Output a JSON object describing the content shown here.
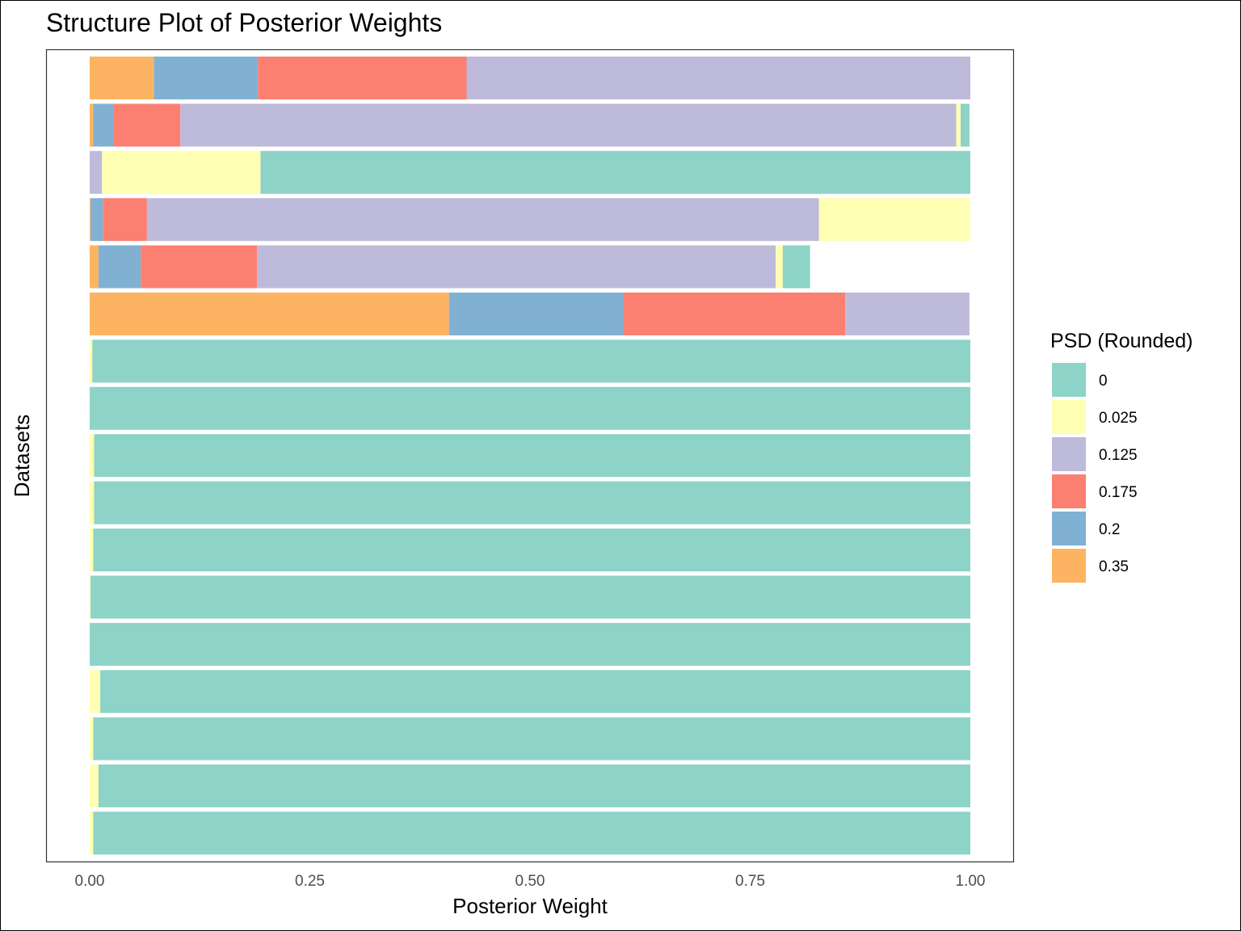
{
  "chart_data": {
    "type": "bar",
    "orientation": "horizontal",
    "stacked": true,
    "title": "Structure Plot of Posterior Weights",
    "xlabel": "Posterior Weight",
    "ylabel": "Datasets",
    "xlim": [
      0,
      1
    ],
    "x_ticks": [
      "0.00",
      "0.25",
      "0.50",
      "0.75",
      "1.00"
    ],
    "grid": false,
    "legend_position": "right",
    "legend_title": "PSD (Rounded)",
    "series": [
      {
        "name": "0",
        "color": "#8DD3C7",
        "values": [
          0.0,
          0.01,
          0.806,
          0.0,
          0.031,
          0.0,
          0.997,
          1.0,
          0.995,
          0.995,
          0.996,
          0.999,
          1.0,
          0.988,
          0.996,
          0.99,
          0.996
        ]
      },
      {
        "name": "0.025",
        "color": "#FFFFB3",
        "values": [
          0.0,
          0.005,
          0.18,
          0.172,
          0.008,
          0.0,
          0.003,
          0.0,
          0.005,
          0.005,
          0.004,
          0.001,
          0.0,
          0.012,
          0.004,
          0.01,
          0.004
        ]
      },
      {
        "name": "0.125",
        "color": "#BEBADA",
        "values": [
          0.572,
          0.881,
          0.014,
          0.763,
          0.589,
          0.141,
          0.0,
          0.0,
          0.0,
          0.0,
          0.0,
          0.0,
          0.0,
          0.0,
          0.0,
          0.0,
          0.0
        ]
      },
      {
        "name": "0.175",
        "color": "#FB8072",
        "values": [
          0.237,
          0.076,
          0.0,
          0.05,
          0.132,
          0.252,
          0.0,
          0.0,
          0.0,
          0.0,
          0.0,
          0.0,
          0.0,
          0.0,
          0.0,
          0.0,
          0.0
        ]
      },
      {
        "name": "0.2",
        "color": "#80B1D3",
        "values": [
          0.118,
          0.023,
          0.0,
          0.014,
          0.048,
          0.198,
          0.0,
          0.0,
          0.0,
          0.0,
          0.0,
          0.0,
          0.0,
          0.0,
          0.0,
          0.0,
          0.0
        ]
      },
      {
        "name": "0.35",
        "color": "#FDB462",
        "values": [
          0.073,
          0.004,
          0.0,
          0.001,
          0.01,
          0.408,
          0.0,
          0.0,
          0.0,
          0.0,
          0.0,
          0.0,
          0.0,
          0.0,
          0.0,
          0.0,
          0.0
        ]
      }
    ]
  }
}
